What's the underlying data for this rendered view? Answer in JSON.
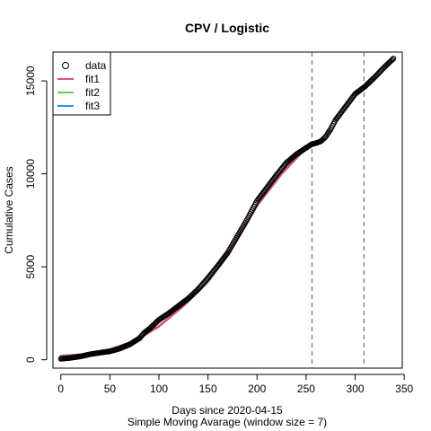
{
  "chart_data": {
    "type": "scatter",
    "title": "CPV / Logistic",
    "xlabel": "Days since 2020-04-15",
    "subtitle": "Simple Moving Avarage (window size = 7)",
    "ylabel": "Cumulative Cases",
    "xlim": [
      -8,
      348
    ],
    "ylim": [
      -450,
      16550
    ],
    "x_ticks": [
      0,
      50,
      100,
      150,
      200,
      250,
      300,
      350
    ],
    "y_ticks": [
      0,
      5000,
      10000,
      15000
    ],
    "grid": false,
    "legend_position": "top-left",
    "vlines": [
      {
        "x": 256,
        "style": "dashed",
        "color": "#555555"
      },
      {
        "x": 309,
        "style": "dashed",
        "color": "#555555"
      }
    ],
    "series": [
      {
        "name": "data",
        "kind": "points",
        "marker": "circle-open",
        "color": "#000000",
        "x": [
          0,
          10,
          20,
          30,
          40,
          50,
          60,
          70,
          80,
          85,
          90,
          95,
          100,
          110,
          120,
          130,
          140,
          150,
          160,
          170,
          180,
          190,
          200,
          210,
          220,
          230,
          240,
          250,
          256,
          260,
          265,
          270,
          275,
          280,
          290,
          300,
          310,
          320,
          330,
          339
        ],
        "y": [
          50,
          100,
          180,
          300,
          380,
          450,
          600,
          820,
          1150,
          1450,
          1650,
          1900,
          2150,
          2500,
          2900,
          3300,
          3800,
          4400,
          5050,
          5750,
          6650,
          7550,
          8550,
          9250,
          9950,
          10600,
          11050,
          11400,
          11600,
          11650,
          11750,
          12000,
          12400,
          12900,
          13600,
          14300,
          14700,
          15200,
          15750,
          16200
        ]
      },
      {
        "name": "fit1",
        "kind": "line",
        "color": "#DF536B",
        "x": [
          0,
          25,
          50,
          75,
          100,
          125,
          150,
          175,
          200,
          225,
          250,
          256
        ],
        "y": [
          200,
          300,
          560,
          1000,
          1800,
          2900,
          4200,
          6100,
          8300,
          10000,
          11400,
          11700
        ]
      },
      {
        "name": "fit2",
        "kind": "line",
        "color": "#61D04F",
        "x": [
          0,
          25,
          50,
          75,
          100,
          125,
          150,
          175,
          200,
          225,
          250,
          256
        ],
        "y": [
          200,
          300,
          560,
          1000,
          1800,
          2900,
          4200,
          6100,
          8300,
          10000,
          11400,
          11700
        ]
      },
      {
        "name": "fit3",
        "kind": "line",
        "color": "#2297E6",
        "x": [
          0,
          25,
          50,
          75,
          100,
          125,
          150,
          175,
          200,
          225,
          250,
          256
        ],
        "y": [
          200,
          300,
          560,
          1000,
          1800,
          2900,
          4200,
          6100,
          8300,
          10000,
          11400,
          11700
        ]
      }
    ]
  }
}
